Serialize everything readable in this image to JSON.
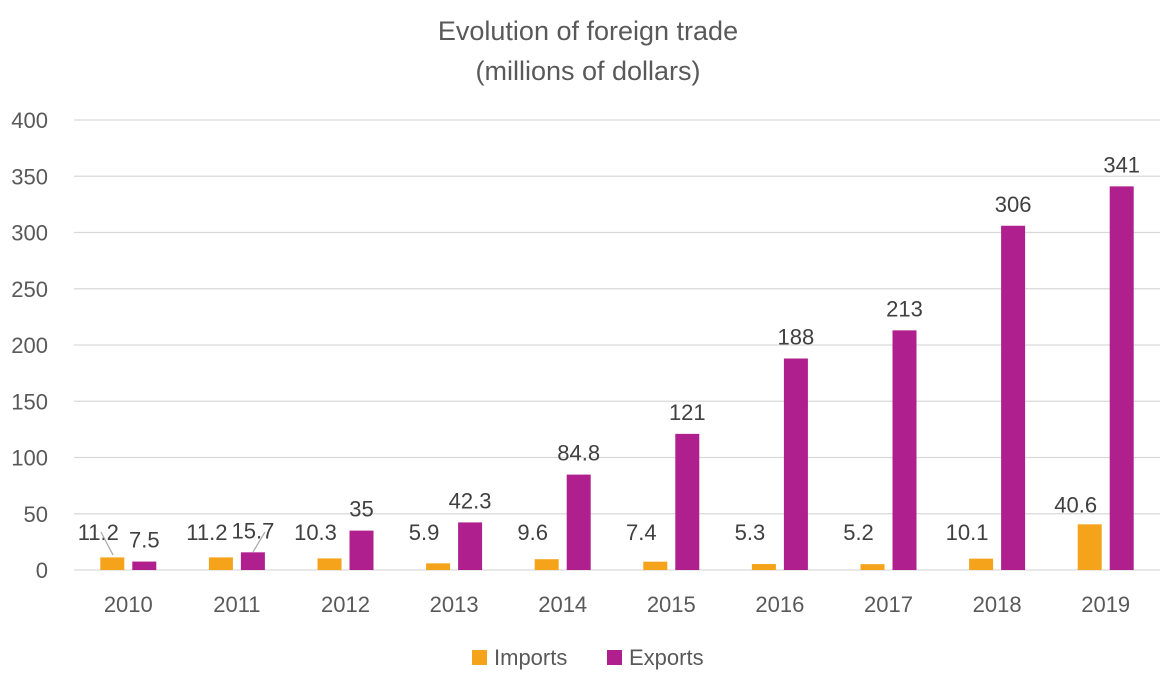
{
  "chart_data": {
    "type": "bar",
    "title": "Evolution of foreign trade",
    "subtitle": "(millions of dollars)",
    "xlabel": "",
    "ylabel": "",
    "categories": [
      "2010",
      "2011",
      "2012",
      "2013",
      "2014",
      "2015",
      "2016",
      "2017",
      "2018",
      "2019"
    ],
    "series": [
      {
        "name": "Imports",
        "color": "#f5a31a",
        "values": [
          11.2,
          11.2,
          10.3,
          5.9,
          9.6,
          7.4,
          5.3,
          5.2,
          10.1,
          40.6
        ],
        "labels": [
          "11.2",
          "11.2",
          "10.3",
          "5.9",
          "9.6",
          "7.4",
          "5.3",
          "5.2",
          "10.1",
          "40.6"
        ]
      },
      {
        "name": "Exports",
        "color": "#b01f8e",
        "values": [
          7.5,
          15.7,
          35,
          42.3,
          84.8,
          121,
          188,
          213,
          306,
          341
        ],
        "labels": [
          "7.5",
          "15.7",
          "35",
          "42.3",
          "84.8",
          "121",
          "188",
          "213",
          "306",
          "341"
        ]
      }
    ],
    "ylim": [
      0,
      400
    ],
    "yticks": [
      "0",
      "50",
      "100",
      "150",
      "200",
      "250",
      "300",
      "350",
      "400"
    ],
    "grid": true,
    "legend": "bottom"
  }
}
